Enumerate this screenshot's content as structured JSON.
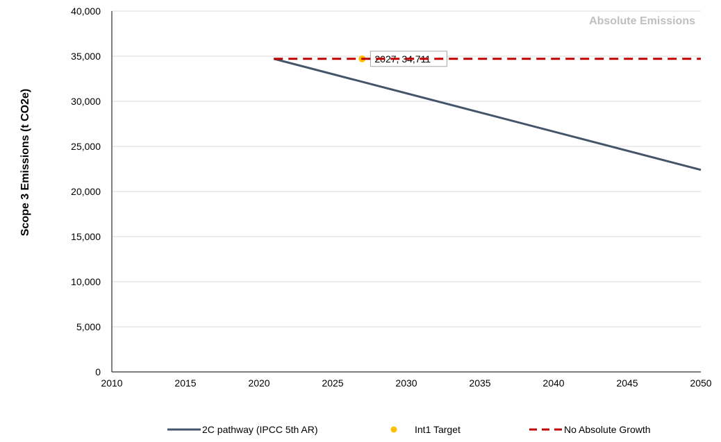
{
  "chart_data": {
    "type": "line",
    "title": "Absolute Emissions",
    "ylabel": "Scope 3 Emissions (t CO2e)",
    "xlabel": "",
    "xlim": [
      2010,
      2050
    ],
    "ylim": [
      0,
      40000
    ],
    "xticks": [
      2010,
      2015,
      2020,
      2025,
      2030,
      2035,
      2040,
      2045,
      2050
    ],
    "yticks": [
      0,
      5000,
      10000,
      15000,
      20000,
      25000,
      30000,
      35000,
      40000
    ],
    "ytick_labels": [
      "0",
      "5,000",
      "10,000",
      "15,000",
      "20,000",
      "25,000",
      "30,000",
      "35,000",
      "40,000"
    ],
    "grid": "horizontal",
    "legend_position": "bottom",
    "series": [
      {
        "name": "2C pathway (IPCC 5th AR)",
        "style": "solid",
        "color": "#44546a",
        "points": [
          [
            2021,
            34711
          ],
          [
            2050,
            22400
          ]
        ]
      },
      {
        "name": "Int1 Target",
        "style": "marker",
        "color": "#ffc000",
        "points": [
          [
            2027,
            34711
          ]
        ]
      },
      {
        "name": "No Absolute Growth",
        "style": "dashed",
        "color": "#c00000",
        "points": [
          [
            2021,
            34711
          ],
          [
            2050,
            34711
          ]
        ]
      }
    ],
    "annotations": [
      {
        "text": "2027, 34,711",
        "x": 2027,
        "y": 34711
      }
    ]
  }
}
